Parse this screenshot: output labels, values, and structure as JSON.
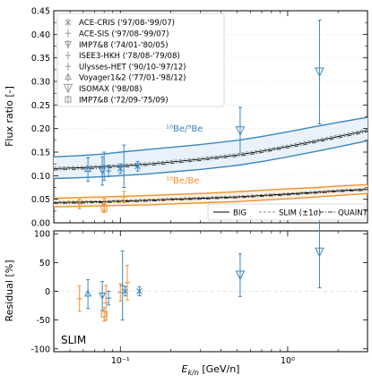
{
  "chart_data": [
    {
      "type": "line",
      "panel": "top",
      "ylabel": "Flux ratio [-]",
      "ylim": [
        0,
        0.45
      ],
      "yticks": [
        "0.00",
        "0.05",
        "0.10",
        "0.15",
        "0.20",
        "0.25",
        "0.30",
        "0.35",
        "0.40",
        "0.45"
      ],
      "xscale": "log",
      "xlim": [
        0.04,
        3
      ],
      "xticks": [
        "10⁻¹",
        "10⁰"
      ],
      "annotations": [
        {
          "text": "¹⁰Be/⁹Be",
          "color": "#3a87c0"
        },
        {
          "text": "¹⁰Be/Be",
          "color": "#f0902c"
        }
      ],
      "legend_data": [
        {
          "label": "ACE-CRIS ('97/08-'99/07)"
        },
        {
          "label": "ACE-SIS ('97/08-'99/07)"
        },
        {
          "label": "IMP7&8 ('74/01-'80/05)"
        },
        {
          "label": "ISEE3-HKH ('78/08-'79/08)"
        },
        {
          "label": "Ulysses-HET ('90/10-'97/12)"
        },
        {
          "label": "Voyager1&2 ('77/01-'98/12)"
        },
        {
          "label": "ISOMAX ('98/08)"
        },
        {
          "label": "IMP7&8 ('72/09-'75/09)"
        }
      ],
      "legend_models": [
        {
          "label": "BIG"
        },
        {
          "label": "SLIM (±1σ)"
        },
        {
          "label": "QUAINT"
        }
      ],
      "series": [
        {
          "group": "10Be/9Be",
          "curve": "upper",
          "x": [
            0.04,
            0.06,
            0.08,
            0.1,
            0.15,
            0.2,
            0.3,
            0.5,
            0.7,
            1.0,
            1.5,
            2.0,
            3.0
          ],
          "values": [
            0.14,
            0.143,
            0.146,
            0.15,
            0.156,
            0.16,
            0.166,
            0.175,
            0.183,
            0.193,
            0.205,
            0.213,
            0.224
          ]
        },
        {
          "group": "10Be/9Be",
          "curve": "lower",
          "x": [
            0.04,
            0.06,
            0.08,
            0.1,
            0.15,
            0.2,
            0.3,
            0.5,
            0.7,
            1.0,
            1.5,
            2.0,
            3.0
          ],
          "values": [
            0.094,
            0.096,
            0.098,
            0.1,
            0.104,
            0.108,
            0.113,
            0.122,
            0.13,
            0.14,
            0.152,
            0.161,
            0.174
          ]
        },
        {
          "group": "10Be/9Be",
          "curve": "BIG",
          "x": [
            0.04,
            0.06,
            0.08,
            0.1,
            0.15,
            0.2,
            0.3,
            0.5,
            0.7,
            1.0,
            1.5,
            2.0,
            3.0
          ],
          "values": [
            0.115,
            0.117,
            0.119,
            0.121,
            0.125,
            0.129,
            0.135,
            0.144,
            0.152,
            0.162,
            0.174,
            0.183,
            0.196
          ]
        },
        {
          "group": "10Be/9Be",
          "curve": "SLIM",
          "x": [
            0.04,
            0.06,
            0.08,
            0.1,
            0.15,
            0.2,
            0.3,
            0.5,
            0.7,
            1.0,
            1.5,
            2.0,
            3.0
          ],
          "values": [
            0.118,
            0.12,
            0.122,
            0.124,
            0.128,
            0.132,
            0.138,
            0.147,
            0.155,
            0.165,
            0.177,
            0.186,
            0.199
          ]
        },
        {
          "group": "10Be/9Be",
          "curve": "QUAINT",
          "x": [
            0.04,
            0.06,
            0.08,
            0.1,
            0.15,
            0.2,
            0.3,
            0.5,
            0.7,
            1.0,
            1.5,
            2.0,
            3.0
          ],
          "values": [
            0.112,
            0.114,
            0.116,
            0.118,
            0.122,
            0.126,
            0.132,
            0.141,
            0.149,
            0.159,
            0.171,
            0.18,
            0.193
          ]
        },
        {
          "group": "10Be/Be",
          "curve": "upper",
          "x": [
            0.04,
            0.06,
            0.08,
            0.1,
            0.15,
            0.2,
            0.3,
            0.5,
            0.7,
            1.0,
            1.5,
            2.0,
            3.0
          ],
          "values": [
            0.052,
            0.054,
            0.055,
            0.056,
            0.058,
            0.06,
            0.062,
            0.066,
            0.069,
            0.072,
            0.075,
            0.078,
            0.081
          ]
        },
        {
          "group": "10Be/Be",
          "curve": "lower",
          "x": [
            0.04,
            0.06,
            0.08,
            0.1,
            0.15,
            0.2,
            0.3,
            0.5,
            0.7,
            1.0,
            1.5,
            2.0,
            3.0
          ],
          "values": [
            0.034,
            0.035,
            0.036,
            0.037,
            0.038,
            0.04,
            0.042,
            0.045,
            0.048,
            0.051,
            0.055,
            0.058,
            0.062
          ]
        },
        {
          "group": "10Be/Be",
          "curve": "BIG",
          "x": [
            0.04,
            0.06,
            0.08,
            0.1,
            0.15,
            0.2,
            0.3,
            0.5,
            0.7,
            1.0,
            1.5,
            2.0,
            3.0
          ],
          "values": [
            0.043,
            0.044,
            0.045,
            0.046,
            0.048,
            0.05,
            0.052,
            0.055,
            0.058,
            0.061,
            0.065,
            0.068,
            0.071
          ]
        },
        {
          "group": "10Be/Be",
          "curve": "SLIM",
          "x": [
            0.04,
            0.06,
            0.08,
            0.1,
            0.15,
            0.2,
            0.3,
            0.5,
            0.7,
            1.0,
            1.5,
            2.0,
            3.0
          ],
          "values": [
            0.045,
            0.046,
            0.047,
            0.048,
            0.05,
            0.052,
            0.054,
            0.057,
            0.06,
            0.063,
            0.067,
            0.07,
            0.073
          ]
        },
        {
          "group": "10Be/Be",
          "curve": "QUAINT",
          "x": [
            0.04,
            0.06,
            0.08,
            0.1,
            0.15,
            0.2,
            0.3,
            0.5,
            0.7,
            1.0,
            1.5,
            2.0,
            3.0
          ],
          "values": [
            0.041,
            0.042,
            0.043,
            0.044,
            0.046,
            0.048,
            0.05,
            0.053,
            0.056,
            0.059,
            0.063,
            0.066,
            0.069
          ]
        }
      ],
      "points": [
        {
          "dataset": "Voyager1&2",
          "group": "10Be/9Be",
          "x": 0.064,
          "y": 0.113,
          "err": [
            0.025,
            0.025
          ],
          "marker": "tri-up"
        },
        {
          "dataset": "IMP7&8",
          "group": "10Be/9Be",
          "x": 0.078,
          "y": 0.11,
          "err": [
            0.03,
            0.03
          ],
          "marker": "tri-down"
        },
        {
          "dataset": "ISEE3-HKH",
          "group": "10Be/9Be",
          "x": 0.08,
          "y": 0.12,
          "err": [
            0.03,
            0.03
          ],
          "marker": "plus"
        },
        {
          "dataset": "Ulysses-HET",
          "group": "10Be/9Be",
          "x": 0.085,
          "y": 0.11,
          "err": [
            0.012,
            0.012
          ],
          "marker": "plus"
        },
        {
          "dataset": "ACE-CRIS",
          "group": "10Be/9Be",
          "x": 0.1,
          "y": 0.115,
          "err": [
            0.01,
            0.01
          ],
          "marker": "x"
        },
        {
          "dataset": "ACE-SIS",
          "group": "10Be/9Be",
          "x": 0.105,
          "y": 0.12,
          "err": [
            0.045,
            0.045
          ],
          "marker": "plus"
        },
        {
          "dataset": "ACE-CRIS",
          "group": "10Be/9Be",
          "x": 0.127,
          "y": 0.12,
          "err": [
            0.01,
            0.01
          ],
          "marker": "x"
        },
        {
          "dataset": "ISOMAX",
          "group": "10Be/9Be",
          "x": 0.52,
          "y": 0.195,
          "err": [
            0.05,
            0.05
          ],
          "marker": "tri-down-big"
        },
        {
          "dataset": "ISOMAX",
          "group": "10Be/9Be",
          "x": 1.55,
          "y": 0.32,
          "err": [
            0.11,
            0.11
          ],
          "marker": "tri-down-big"
        },
        {
          "dataset": "Voyager1&2",
          "group": "10Be/Be",
          "x": 0.057,
          "y": 0.04,
          "err": [
            0.01,
            0.01
          ],
          "marker": "plus"
        },
        {
          "dataset": "IMP7&8",
          "group": "10Be/Be",
          "x": 0.08,
          "y": 0.04,
          "err": [
            0.012,
            0.012
          ],
          "marker": "plus"
        },
        {
          "dataset": "IMP7&8 ('72)",
          "group": "10Be/Be",
          "x": 0.08,
          "y": 0.03,
          "err": [
            0.008,
            0.008
          ],
          "marker": "square"
        },
        {
          "dataset": "ACE-SIS",
          "group": "10Be/Be",
          "x": 0.105,
          "y": 0.055,
          "err": [
            0.012,
            0.012
          ],
          "marker": "plus"
        }
      ]
    },
    {
      "type": "scatter",
      "panel": "bottom",
      "ylabel": "Residual [%]",
      "xlabel": "E_k/n [GeV/n]",
      "ylim": [
        -105,
        105
      ],
      "yticks": [
        "-100",
        "-50",
        "0",
        "50",
        "100"
      ],
      "xscale": "log",
      "xlim": [
        0.04,
        3
      ],
      "xticks": [
        "10⁻¹",
        "10⁰"
      ],
      "label": "SLIM",
      "points": [
        {
          "group": "10Be/Be",
          "x": 0.057,
          "y": -13,
          "err": [
            22,
            22
          ],
          "marker": "plus"
        },
        {
          "group": "10Be/9Be",
          "x": 0.064,
          "y": -5,
          "err": [
            25,
            25
          ],
          "marker": "tri-up"
        },
        {
          "group": "10Be/9Be",
          "x": 0.078,
          "y": -8,
          "err": [
            25,
            25
          ],
          "marker": "tri-down"
        },
        {
          "group": "10Be/Be",
          "x": 0.08,
          "y": -40,
          "err": [
            12,
            12
          ],
          "marker": "square"
        },
        {
          "group": "10Be/Be",
          "x": 0.082,
          "y": -20,
          "err": [
            30,
            30
          ],
          "marker": "plus"
        },
        {
          "group": "10Be/9Be",
          "x": 0.085,
          "y": -12,
          "err": [
            12,
            12
          ],
          "marker": "plus"
        },
        {
          "group": "10Be/Be",
          "x": 0.1,
          "y": -2,
          "err": [
            15,
            15
          ],
          "marker": "plus"
        },
        {
          "group": "10Be/9Be",
          "x": 0.103,
          "y": 10,
          "err": [
            60,
            60
          ],
          "marker": "plus"
        },
        {
          "group": "10Be/9Be",
          "x": 0.107,
          "y": 0,
          "err": [
            8,
            8
          ],
          "marker": "x"
        },
        {
          "group": "10Be/Be",
          "x": 0.11,
          "y": 15,
          "err": [
            30,
            30
          ],
          "marker": "plus"
        },
        {
          "group": "10Be/9Be",
          "x": 0.13,
          "y": 0,
          "err": [
            8,
            8
          ],
          "marker": "x"
        },
        {
          "group": "10Be/9Be",
          "x": 0.52,
          "y": 28,
          "err": [
            37,
            37
          ],
          "marker": "tri-down-big"
        },
        {
          "group": "10Be/9Be",
          "x": 1.55,
          "y": 68,
          "err": [
            62,
            62
          ],
          "marker": "tri-down-big"
        }
      ]
    }
  ]
}
